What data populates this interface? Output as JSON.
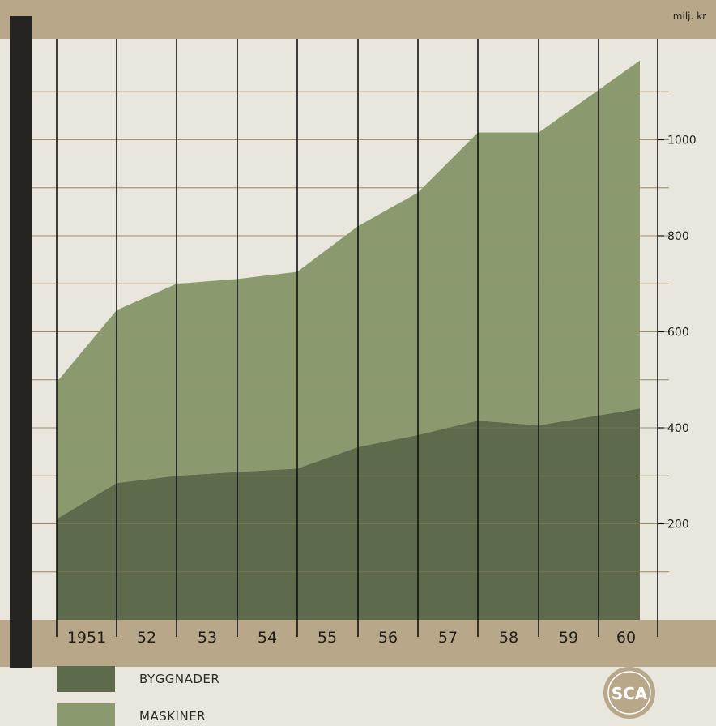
{
  "colors": {
    "band": "#b9a78a",
    "paper": "#e9e6de",
    "byggnader": "#5d6a4c",
    "maskiner": "#8b9a6e",
    "grid": "#111111",
    "hgrid": "#a08a66",
    "spine": "#262421",
    "logo": "#b9a78a"
  },
  "logo": {
    "text": "SCA"
  },
  "chart_data": {
    "type": "area",
    "stacked": true,
    "x": [
      "1951",
      "52",
      "53",
      "54",
      "55",
      "56",
      "57",
      "58",
      "59",
      "60"
    ],
    "unit_label": "milj. kr",
    "y_ticks": [
      200,
      400,
      600,
      800,
      1000
    ],
    "ylim": [
      0,
      1150
    ],
    "grid": true,
    "legend_position": "bottom-left",
    "series": [
      {
        "name": "BYGGNADER",
        "values": [
          210,
          285,
          300,
          308,
          315,
          360,
          385,
          415,
          405,
          440
        ]
      },
      {
        "name": "MASKINER",
        "values": [
          285,
          360,
          400,
          402,
          410,
          460,
          505,
          600,
          610,
          725
        ]
      }
    ],
    "totals": [
      495,
      645,
      700,
      710,
      725,
      820,
      890,
      1015,
      1015,
      1165
    ]
  }
}
